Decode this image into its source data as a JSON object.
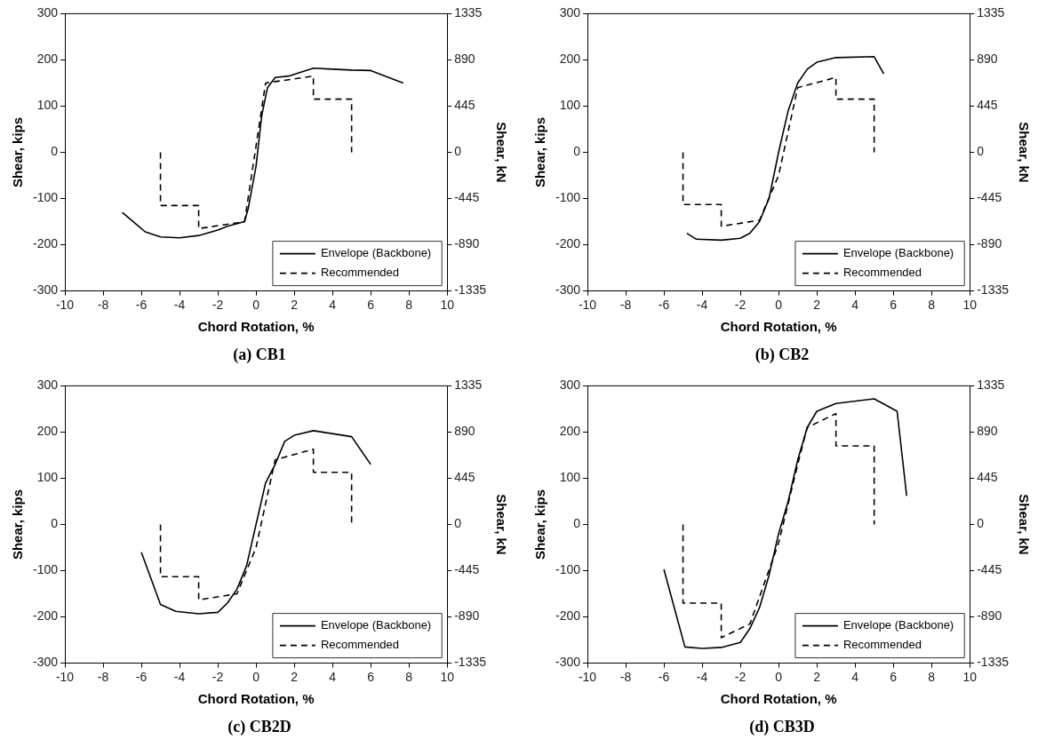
{
  "chart_data": [
    {
      "type": "line",
      "title": "(a) CB1",
      "xlabel": "Chord Rotation, %",
      "ylabel": "Shear, kips",
      "y2label": "Shear, kN",
      "xlim": [
        -10,
        10
      ],
      "xticks": [
        -10,
        -8,
        -6,
        -4,
        -2,
        0,
        2,
        4,
        6,
        8,
        10
      ],
      "ylim": [
        -300,
        300
      ],
      "yticks": [
        -300,
        -200,
        -100,
        0,
        100,
        200,
        300
      ],
      "y2lim": [
        -1335,
        1335
      ],
      "y2ticks": [
        -1335,
        -890,
        -445,
        0,
        445,
        890,
        1335
      ],
      "grid": false,
      "legend": "bottom right",
      "marker": "none",
      "series": [
        {
          "name": "Envelope (Backbone)",
          "color": "#000000",
          "line_style": "solid",
          "x": [
            -7,
            -5.8,
            -5,
            -4,
            -3,
            -2,
            -1.5,
            -0.6,
            -0.4,
            0,
            0.3,
            0.6,
            1,
            1.7,
            3,
            4,
            5,
            6,
            7.7
          ],
          "values": [
            -130,
            -172,
            -183,
            -185,
            -180,
            -168,
            -160,
            -150,
            -120,
            -30,
            80,
            140,
            162,
            165,
            182,
            180,
            178,
            177,
            150
          ]
        },
        {
          "name": "Recommended",
          "color": "#000000",
          "line_style": "dashed",
          "x": [
            -5,
            -5,
            -3,
            -3,
            -0.6,
            0.5,
            3,
            3,
            5,
            5
          ],
          "values": [
            0,
            -115,
            -115,
            -165,
            -150,
            150,
            165,
            115,
            115,
            0
          ]
        }
      ]
    },
    {
      "type": "line",
      "title": "(b) CB2",
      "xlabel": "Chord Rotation, %",
      "ylabel": "Shear, kips",
      "y2label": "Shear, kN",
      "xlim": [
        -10,
        10
      ],
      "xticks": [
        -10,
        -8,
        -6,
        -4,
        -2,
        0,
        2,
        4,
        6,
        8,
        10
      ],
      "ylim": [
        -300,
        300
      ],
      "yticks": [
        -300,
        -200,
        -100,
        0,
        100,
        200,
        300
      ],
      "y2lim": [
        -1335,
        1335
      ],
      "y2ticks": [
        -1335,
        -890,
        -445,
        0,
        445,
        890,
        1335
      ],
      "grid": false,
      "legend": "bottom right",
      "marker": "none",
      "series": [
        {
          "name": "Envelope (Backbone)",
          "color": "#000000",
          "line_style": "solid",
          "x": [
            -4.8,
            -4.3,
            -3,
            -2,
            -1.5,
            -1,
            -0.5,
            0,
            0.5,
            1,
            1.5,
            2,
            3,
            5,
            5.5
          ],
          "values": [
            -175,
            -188,
            -190,
            -186,
            -175,
            -150,
            -100,
            0,
            90,
            150,
            180,
            195,
            205,
            207,
            170
          ]
        },
        {
          "name": "Recommended",
          "color": "#000000",
          "line_style": "dashed",
          "x": [
            -5,
            -5,
            -3,
            -3,
            -1,
            0,
            1,
            3,
            3,
            5,
            5
          ],
          "values": [
            0,
            -113,
            -113,
            -160,
            -147,
            -50,
            140,
            162,
            115,
            115,
            0
          ]
        }
      ]
    },
    {
      "type": "line",
      "title": "(c) CB2D",
      "xlabel": "Chord Rotation, %",
      "ylabel": "Shear, kips",
      "y2label": "Shear, kN",
      "xlim": [
        -10,
        10
      ],
      "xticks": [
        -10,
        -8,
        -6,
        -4,
        -2,
        0,
        2,
        4,
        6,
        8,
        10
      ],
      "ylim": [
        -300,
        300
      ],
      "yticks": [
        -300,
        -200,
        -100,
        0,
        100,
        200,
        300
      ],
      "y2lim": [
        -1335,
        1335
      ],
      "y2ticks": [
        -1335,
        -890,
        -445,
        0,
        445,
        890,
        1335
      ],
      "grid": false,
      "legend": "bottom right",
      "marker": "none",
      "series": [
        {
          "name": "Envelope (Backbone)",
          "color": "#000000",
          "line_style": "solid",
          "x": [
            -6,
            -5,
            -4.2,
            -3,
            -2,
            -1.5,
            -1,
            -0.5,
            0,
            0.5,
            1,
            1.5,
            2,
            3,
            5,
            6
          ],
          "values": [
            -60,
            -173,
            -188,
            -193,
            -190,
            -170,
            -140,
            -90,
            0,
            90,
            130,
            180,
            193,
            203,
            190,
            130
          ]
        },
        {
          "name": "Recommended",
          "color": "#000000",
          "line_style": "dashed",
          "x": [
            -5,
            -5,
            -3,
            -3,
            -1,
            0,
            1,
            3,
            3,
            5,
            5
          ],
          "values": [
            0,
            -113,
            -113,
            -163,
            -150,
            -50,
            140,
            163,
            113,
            113,
            0
          ]
        }
      ]
    },
    {
      "type": "line",
      "title": "(d) CB3D",
      "xlabel": "Chord Rotation, %",
      "ylabel": "Shear, kips",
      "y2label": "Shear, kN",
      "xlim": [
        -10,
        10
      ],
      "xticks": [
        -10,
        -8,
        -6,
        -4,
        -2,
        0,
        2,
        4,
        6,
        8,
        10
      ],
      "ylim": [
        -300,
        300
      ],
      "yticks": [
        -300,
        -200,
        -100,
        0,
        100,
        200,
        300
      ],
      "y2lim": [
        -1335,
        1335
      ],
      "y2ticks": [
        -1335,
        -890,
        -445,
        0,
        445,
        890,
        1335
      ],
      "grid": false,
      "legend": "bottom right",
      "marker": "none",
      "series": [
        {
          "name": "Envelope (Backbone)",
          "color": "#000000",
          "line_style": "solid",
          "x": [
            -6,
            -4.9,
            -4,
            -3,
            -2,
            -1.5,
            -1,
            -0.5,
            0,
            0.5,
            1,
            1.5,
            2,
            3,
            5,
            6.2,
            6.7
          ],
          "values": [
            -97,
            -265,
            -268,
            -266,
            -255,
            -225,
            -180,
            -110,
            -20,
            50,
            140,
            210,
            245,
            262,
            272,
            245,
            62
          ]
        },
        {
          "name": "Recommended",
          "color": "#000000",
          "line_style": "dashed",
          "x": [
            -5,
            -5,
            -3,
            -3,
            -1.5,
            0,
            1,
            1.5,
            3,
            3,
            5,
            5
          ],
          "values": [
            0,
            -170,
            -170,
            -245,
            -215,
            -40,
            130,
            210,
            240,
            170,
            170,
            0
          ]
        }
      ]
    }
  ]
}
